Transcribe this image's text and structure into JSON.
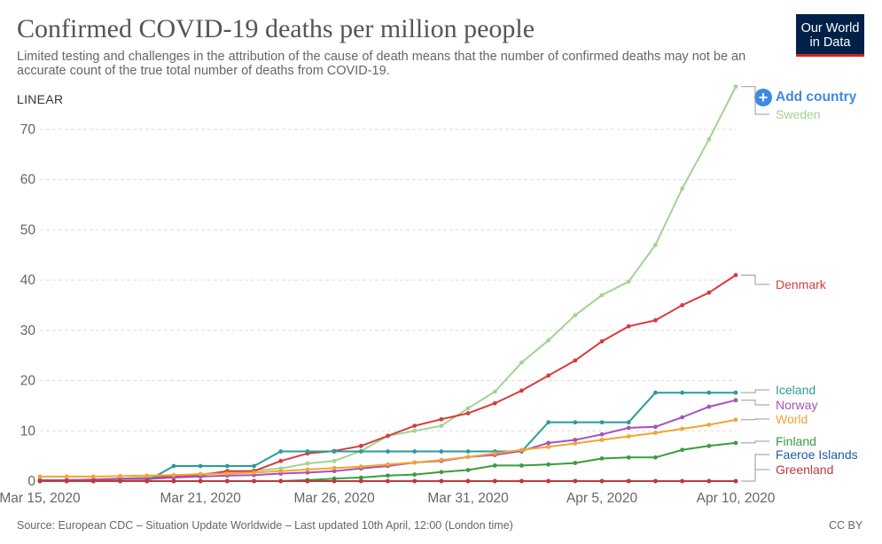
{
  "header": {
    "title": "Confirmed COVID-19 deaths per million people",
    "subtitle": "Limited testing and challenges in the attribution of the cause of death means that the number of confirmed deaths may not be an accurate count of the true total number of deaths from COVID-19.",
    "logo_line1": "Our World",
    "logo_line2": "in Data",
    "logo_bg": "#002147",
    "logo_accent": "#ce261e"
  },
  "controls": {
    "scale_label": "LINEAR",
    "add_country_label": "Add country",
    "add_icon": "plus-circle-icon"
  },
  "footer": {
    "source": "Source: European CDC – Situation Update Worldwide – Last updated 10th April, 12:00 (London time)",
    "license": "CC BY"
  },
  "chart_data": {
    "type": "line",
    "title": "Confirmed COVID-19 deaths per million people",
    "xlabel": "",
    "ylabel": "",
    "ylim": [
      0,
      80
    ],
    "yticks": [
      0,
      10,
      20,
      30,
      40,
      50,
      60,
      70
    ],
    "grid": true,
    "legend": "line-end labels on right",
    "x_start": "Mar 15, 2020",
    "x_end": "Apr 10, 2020",
    "xticks": [
      {
        "label": "Mar 15, 2020",
        "day": 0
      },
      {
        "label": "Mar 21, 2020",
        "day": 6
      },
      {
        "label": "Mar 26, 2020",
        "day": 11
      },
      {
        "label": "Mar 31, 2020",
        "day": 16
      },
      {
        "label": "Apr 5, 2020",
        "day": 21
      },
      {
        "label": "Apr 10, 2020",
        "day": 26
      }
    ],
    "series": [
      {
        "name": "Sweden",
        "color": "#a2d394",
        "values": [
          0.1,
          0.2,
          0.3,
          0.5,
          0.8,
          1.0,
          1.4,
          1.8,
          2.1,
          2.5,
          3.5,
          4.0,
          6.0,
          9.0,
          10.0,
          11.0,
          14.5,
          17.8,
          23.6,
          28.0,
          33.0,
          37.0,
          39.7,
          47.0,
          58.2,
          68.0,
          78.5
        ]
      },
      {
        "name": "Denmark",
        "color": "#d73c3c",
        "values": [
          0.1,
          0.2,
          0.3,
          0.5,
          0.5,
          1.0,
          1.2,
          2.0,
          2.0,
          4.0,
          5.5,
          6.0,
          7.0,
          9.0,
          11.0,
          12.3,
          13.5,
          15.5,
          18.0,
          21.0,
          24.0,
          27.8,
          30.8,
          32.0,
          35.0,
          37.5,
          41.0
        ]
      },
      {
        "name": "Iceland",
        "color": "#2a9b9b",
        "values": [
          0,
          0,
          0,
          0,
          0,
          3.0,
          3.0,
          3.0,
          3.0,
          5.9,
          5.9,
          5.9,
          5.9,
          5.9,
          5.9,
          5.9,
          5.9,
          5.9,
          5.9,
          11.7,
          11.7,
          11.7,
          11.7,
          17.6,
          17.6,
          17.6,
          17.6
        ]
      },
      {
        "name": "Norway",
        "color": "#a652ba",
        "values": [
          0.2,
          0.2,
          0.2,
          0.4,
          0.4,
          0.7,
          0.9,
          1.1,
          1.2,
          1.5,
          1.7,
          2.0,
          2.5,
          3.0,
          3.7,
          4.0,
          4.8,
          5.2,
          6.0,
          7.6,
          8.2,
          9.3,
          10.6,
          10.8,
          12.7,
          14.8,
          16.1
        ]
      },
      {
        "name": "World",
        "color": "#f2a531",
        "values": [
          0.9,
          0.9,
          0.9,
          1.0,
          1.1,
          1.2,
          1.4,
          1.5,
          1.7,
          2.0,
          2.3,
          2.6,
          2.9,
          3.3,
          3.7,
          4.2,
          4.8,
          5.5,
          6.2,
          6.8,
          7.5,
          8.2,
          8.9,
          9.6,
          10.4,
          11.2,
          12.2
        ]
      },
      {
        "name": "Finland",
        "color": "#3a9d3f",
        "values": [
          0,
          0,
          0,
          0,
          0,
          0,
          0,
          0,
          0,
          0,
          0.2,
          0.5,
          0.7,
          1.1,
          1.3,
          1.8,
          2.2,
          3.1,
          3.1,
          3.3,
          3.6,
          4.5,
          4.7,
          4.7,
          6.2,
          7.0,
          7.6
        ]
      },
      {
        "name": "Faeroe Islands",
        "color": "#1f5aa6",
        "values": [
          0,
          0,
          0,
          0,
          0,
          0,
          0,
          0,
          0,
          0,
          0,
          0,
          0,
          0,
          0,
          0,
          0,
          0,
          0,
          0,
          0,
          0,
          0,
          0,
          0,
          0,
          0
        ]
      },
      {
        "name": "Greenland",
        "color": "#be3a3a",
        "values": [
          0,
          0,
          0,
          0,
          0,
          0,
          0,
          0,
          0,
          0,
          0,
          0,
          0,
          0,
          0,
          0,
          0,
          0,
          0,
          0,
          0,
          0,
          0,
          0,
          0,
          0,
          0
        ]
      }
    ]
  }
}
